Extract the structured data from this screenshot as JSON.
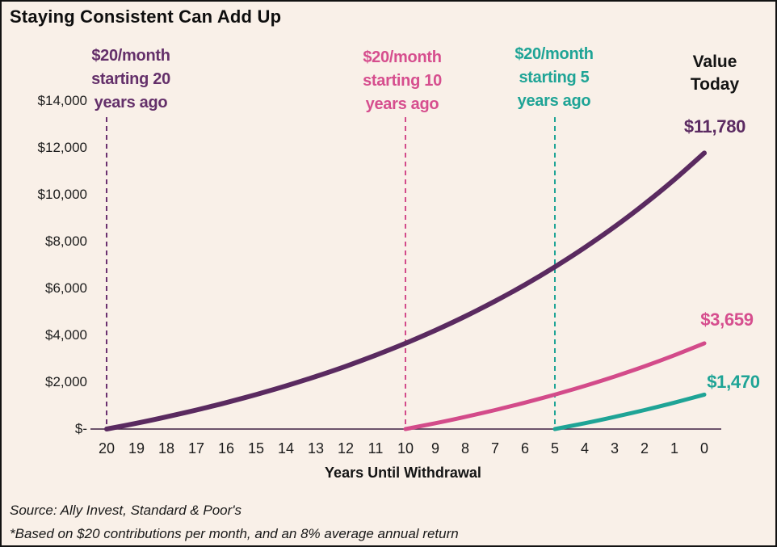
{
  "title": "Staying Consistent Can Add Up",
  "colors": {
    "background": "#f9f0e8",
    "purple": "#5a2a60",
    "pink": "#d34b8a",
    "teal": "#1fa496",
    "axis_line": "#3f1f42",
    "text": "#141414"
  },
  "annotations": [
    {
      "lines": [
        "$20/month",
        "starting 20",
        "years ago"
      ],
      "color": "#64306a"
    },
    {
      "lines": [
        "$20/month",
        "starting 10",
        "years ago"
      ],
      "color": "#d64e8e"
    },
    {
      "lines": [
        "$20/month",
        "starting 5",
        "years ago"
      ],
      "color": "#1fa496"
    }
  ],
  "value_today": {
    "lines": [
      "Value",
      "Today"
    ]
  },
  "end_value_labels": [
    {
      "text": "$11,780",
      "color": "#5c2b62"
    },
    {
      "text": "$3,659",
      "color": "#d64e8e"
    },
    {
      "text": "$1,470",
      "color": "#1fa496"
    }
  ],
  "footer": {
    "source": "Source: Ally Invest, Standard & Poor's",
    "note": "*Based on $20 contributions per month, and an 8% average annual return"
  },
  "chart_data": {
    "type": "line",
    "title": "Staying Consistent Can Add Up",
    "xlabel": "Years Until Withdrawal",
    "ylabel": "",
    "x_ticks": [
      20,
      19,
      18,
      17,
      16,
      15,
      14,
      13,
      12,
      11,
      10,
      9,
      8,
      7,
      6,
      5,
      4,
      3,
      2,
      1,
      0
    ],
    "y_tick_labels": [
      "$-",
      "$2,000",
      "$4,000",
      "$6,000",
      "$8,000",
      "$10,000",
      "$12,000",
      "$14,000"
    ],
    "ylim": [
      0,
      14000
    ],
    "x_axis_reversed": true,
    "grid": false,
    "legend_position": "none",
    "assumption": "$20 contributions per month, 8% average annual return",
    "series": [
      {
        "name": "$20/month starting 20 years ago",
        "color": "#5a2a60",
        "stroke_width": 6,
        "final_value": 11780,
        "final_value_label": "$11,780",
        "points": [
          [
            20,
            0
          ],
          [
            19,
            249
          ],
          [
            18,
            519
          ],
          [
            17,
            811
          ],
          [
            16,
            1127
          ],
          [
            15,
            1470
          ],
          [
            14,
            1841
          ],
          [
            13,
            2242
          ],
          [
            12,
            2677
          ],
          [
            11,
            3149
          ],
          [
            10,
            3659
          ],
          [
            9,
            4212
          ],
          [
            8,
            4810
          ],
          [
            7,
            5458
          ],
          [
            6,
            6160
          ],
          [
            5,
            6921
          ],
          [
            4,
            7744
          ],
          [
            3,
            8636
          ],
          [
            2,
            9602
          ],
          [
            1,
            10648
          ],
          [
            0,
            11780
          ]
        ]
      },
      {
        "name": "$20/month starting 10 years ago",
        "color": "#d34b8a",
        "stroke_width": 5,
        "final_value": 3659,
        "final_value_label": "$3,659",
        "points": [
          [
            10,
            0
          ],
          [
            9,
            249
          ],
          [
            8,
            519
          ],
          [
            7,
            811
          ],
          [
            6,
            1127
          ],
          [
            5,
            1470
          ],
          [
            4,
            1841
          ],
          [
            3,
            2242
          ],
          [
            2,
            2677
          ],
          [
            1,
            3149
          ],
          [
            0,
            3659
          ]
        ]
      },
      {
        "name": "$20/month starting 5 years ago",
        "color": "#1fa496",
        "stroke_width": 5,
        "final_value": 1470,
        "final_value_label": "$1,470",
        "points": [
          [
            5,
            0
          ],
          [
            4,
            249
          ],
          [
            3,
            519
          ],
          [
            2,
            811
          ],
          [
            1,
            1127
          ],
          [
            0,
            1470
          ]
        ]
      }
    ],
    "guides": [
      {
        "year": 20,
        "color": "#6b3170"
      },
      {
        "year": 10,
        "color": "#d34b8a"
      },
      {
        "year": 5,
        "color": "#1fa496"
      }
    ]
  }
}
